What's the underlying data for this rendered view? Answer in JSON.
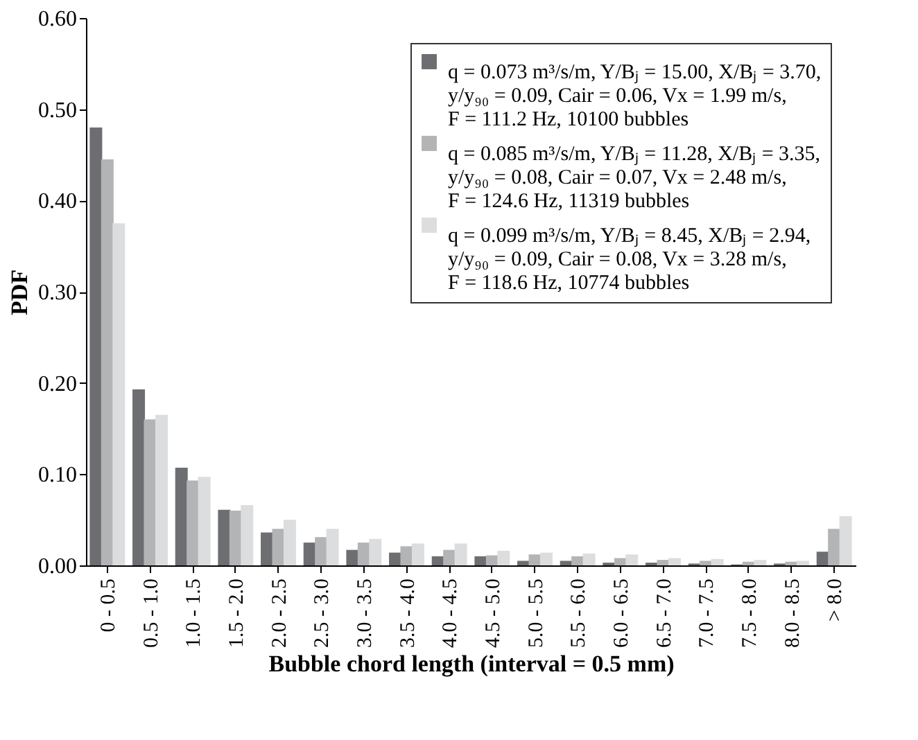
{
  "chart_data": {
    "type": "bar",
    "xlabel": "Bubble chord length (interval = 0.5 mm)",
    "ylabel": "PDF",
    "categories": [
      "0 - 0.5",
      "0.5 - 1.0",
      "1.0 - 1.5",
      "1.5 - 2.0",
      "2.0 - 2.5",
      "2.5 - 3.0",
      "3.0 - 3.5",
      "3.5 - 4.0",
      "4.0 - 4.5",
      "4.5 - 5.0",
      "5.0 - 5.5",
      "5.5 - 6.0",
      "6.0 - 6.5",
      "6.5 - 7.0",
      "7.0 - 7.5",
      "7.5 - 8.0",
      "8.0 - 8.5",
      "> 8.0"
    ],
    "series": [
      {
        "name": "q = 0.073 m³/s/m, Y/Bⱼ = 15.00, X/Bⱼ = 3.70,\ny/y₉₀ = 0.09, Cair = 0.06, Vx = 1.99 m/s,\nF = 111.2 Hz, 10100 bubbles",
        "color": "#6d6e71",
        "values": [
          0.48,
          0.193,
          0.107,
          0.061,
          0.036,
          0.025,
          0.017,
          0.014,
          0.01,
          0.01,
          0.005,
          0.005,
          0.003,
          0.003,
          0.002,
          0.001,
          0.002,
          0.015
        ]
      },
      {
        "name": "q = 0.085 m³/s/m, Y/Bⱼ = 11.28, X/Bⱼ = 3.35,\ny/y₉₀ = 0.08, Cair = 0.07, Vx = 2.48 m/s,\nF = 124.6 Hz, 11319 bubbles",
        "color": "#b3b4b6",
        "values": [
          0.445,
          0.16,
          0.093,
          0.06,
          0.04,
          0.031,
          0.025,
          0.021,
          0.017,
          0.011,
          0.012,
          0.01,
          0.008,
          0.006,
          0.005,
          0.004,
          0.004,
          0.04
        ]
      },
      {
        "name": "q = 0.099 m³/s/m, Y/Bⱼ = 8.45, X/Bⱼ = 2.94,\ny/y₉₀ = 0.09, Cair = 0.08, Vx = 3.28 m/s,\nF = 118.6 Hz, 10774 bubbles",
        "color": "#dcdddf",
        "values": [
          0.375,
          0.165,
          0.097,
          0.066,
          0.05,
          0.04,
          0.029,
          0.024,
          0.024,
          0.016,
          0.014,
          0.013,
          0.012,
          0.008,
          0.007,
          0.006,
          0.005,
          0.054
        ]
      }
    ],
    "ylim": [
      0,
      0.6
    ],
    "yticks": [
      {
        "value": 0,
        "label": "0.00"
      },
      {
        "value": 0.1,
        "label": "0.10"
      },
      {
        "value": 0.2,
        "label": "0.20"
      },
      {
        "value": 0.3,
        "label": "0.30"
      },
      {
        "value": 0.4,
        "label": "0.40"
      },
      {
        "value": 0.5,
        "label": "0.50"
      },
      {
        "value": 0.6,
        "label": "0.60"
      }
    ],
    "grid": false,
    "legend": "top right"
  }
}
